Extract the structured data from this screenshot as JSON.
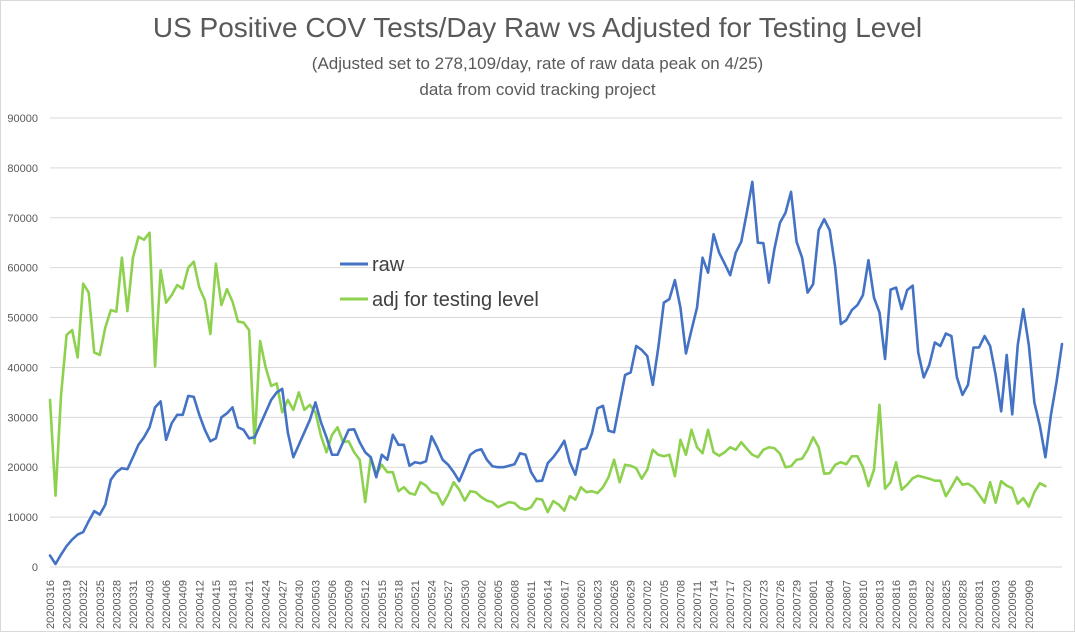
{
  "chart_data": {
    "type": "line",
    "title": "US Positive COV Tests/Day Raw vs Adjusted for Testing Level",
    "subtitle": "(Adjusted set to 278,109/day, rate of raw data peak on 4/25)",
    "subtitle2": "data from covid tracking project",
    "ylim": [
      0,
      90000
    ],
    "y_ticks": [
      "0",
      "10000",
      "20000",
      "30000",
      "40000",
      "50000",
      "60000",
      "70000",
      "80000",
      "90000"
    ],
    "grid": true,
    "legend": "center-left",
    "x_tick_labels": [
      "20200316",
      "20200319",
      "20200322",
      "20200325",
      "20200328",
      "20200331",
      "20200403",
      "20200406",
      "20200409",
      "20200412",
      "20200415",
      "20200418",
      "20200421",
      "20200424",
      "20200427",
      "20200430",
      "20200503",
      "20200506",
      "20200509",
      "20200512",
      "20200515",
      "20200518",
      "20200521",
      "20200524",
      "20200527",
      "20200530",
      "20200602",
      "20200605",
      "20200608",
      "20200611",
      "20200614",
      "20200617",
      "20200620",
      "20200623",
      "20200626",
      "20200629",
      "20200702",
      "20200705",
      "20200708",
      "20200711",
      "20200714",
      "20200717",
      "20200720",
      "20200723",
      "20200726",
      "20200729",
      "20200801",
      "20200804",
      "20200807",
      "20200810",
      "20200813",
      "20200816",
      "20200819",
      "20200822",
      "20200825",
      "20200828",
      "20200831",
      "20200903",
      "20200906",
      "20200909"
    ],
    "series": [
      {
        "name": "raw",
        "color": "#4472C4",
        "values": [
          2300,
          600,
          2500,
          4200,
          5500,
          6500,
          7000,
          9200,
          11200,
          10500,
          12500,
          17500,
          19000,
          19800,
          19600,
          22000,
          24500,
          26000,
          28000,
          32000,
          33200,
          25500,
          28800,
          30500,
          30500,
          34300,
          34100,
          30500,
          27500,
          25200,
          25800,
          30000,
          30800,
          32000,
          28000,
          27500,
          25800,
          26000,
          28500,
          31000,
          33500,
          35000,
          35700,
          27000,
          22000,
          24500,
          27000,
          29500,
          33000,
          29000,
          26000,
          22500,
          22500,
          25000,
          27500,
          27600,
          25000,
          23000,
          22000,
          18000,
          22500,
          21500,
          26500,
          24500,
          24500,
          20300,
          21000,
          20800,
          21200,
          26200,
          24000,
          21500,
          20500,
          19000,
          17200,
          19800,
          22500,
          23300,
          23600,
          21500,
          20200,
          20000,
          20000,
          20300,
          20600,
          22800,
          22500,
          19000,
          17200,
          17300,
          20800,
          22000,
          23500,
          25300,
          21000,
          18500,
          23500,
          23800,
          26800,
          31800,
          32300,
          27300,
          27000,
          32800,
          38500,
          39000,
          44300,
          43500,
          42300,
          36500,
          44000,
          53000,
          53700,
          57500,
          52000,
          42800,
          47500,
          52000,
          62000,
          59000,
          66700,
          63000,
          60800,
          58500,
          63000,
          65200,
          71000,
          77200,
          65000,
          64900,
          57000,
          63800,
          69000,
          71000,
          75200,
          65200,
          62000,
          55000,
          56700,
          67500,
          69700,
          67500,
          60000,
          48700,
          49500,
          51500,
          52500,
          54500,
          61500,
          54000,
          51000,
          41700,
          55600,
          56000,
          51700,
          55500,
          56400,
          43000,
          38000,
          40500,
          45000,
          44300,
          46800,
          46300,
          38000,
          34500,
          36500,
          44000,
          44000,
          46300,
          44300,
          38500,
          31200,
          42500,
          30600,
          44500,
          51700,
          44500,
          33000,
          28300,
          22000,
          30500,
          37000,
          44700
        ]
      },
      {
        "name": "adj for testing level",
        "color": "#8DD14F",
        "values": [
          33500,
          14300,
          34500,
          46500,
          47500,
          42000,
          56800,
          55000,
          43000,
          42500,
          48000,
          51500,
          51200,
          62000,
          51300,
          62000,
          66200,
          65600,
          67000,
          40200,
          59500,
          53000,
          54500,
          56500,
          55800,
          60000,
          61200,
          56000,
          53500,
          46700,
          60800,
          52500,
          55700,
          53200,
          49200,
          49000,
          47500,
          24800,
          45300,
          40000,
          36300,
          36800,
          31000,
          33500,
          31500,
          35000,
          31500,
          32500,
          31000,
          26300,
          23000,
          26500,
          28000,
          25000,
          25200,
          23000,
          21500,
          13000,
          22000,
          18600,
          20500,
          19000,
          19000,
          15200,
          16000,
          14800,
          14500,
          17000,
          16300,
          15000,
          14700,
          12500,
          14500,
          17000,
          15500,
          13300,
          15200,
          15000,
          14000,
          13300,
          13000,
          12000,
          12500,
          13000,
          12800,
          11800,
          11500,
          12000,
          13700,
          13500,
          11000,
          13200,
          12500,
          11300,
          14200,
          13500,
          16000,
          15000,
          15200,
          14800,
          16000,
          18000,
          21500,
          17000,
          20500,
          20300,
          19800,
          17700,
          19500,
          23500,
          22500,
          22200,
          22500,
          18200,
          25500,
          22500,
          27500,
          24000,
          22800,
          27500,
          23000,
          22300,
          23000,
          24000,
          23500,
          25000,
          23700,
          22500,
          22000,
          23500,
          24000,
          23800,
          22700,
          20000,
          20200,
          21500,
          21700,
          23500,
          26000,
          24000,
          18700,
          18800,
          20500,
          21000,
          20600,
          22200,
          22200,
          20000,
          16200,
          19500,
          32500,
          15700,
          17000,
          21000,
          15500,
          16500,
          17800,
          18300,
          18000,
          17700,
          17300,
          17300,
          14200,
          16000,
          18000,
          16500,
          16700,
          16000,
          14500,
          12900,
          17000,
          12900,
          17200,
          16300,
          15800,
          12700,
          13800,
          12100,
          15000,
          16800,
          16200
        ]
      }
    ]
  }
}
